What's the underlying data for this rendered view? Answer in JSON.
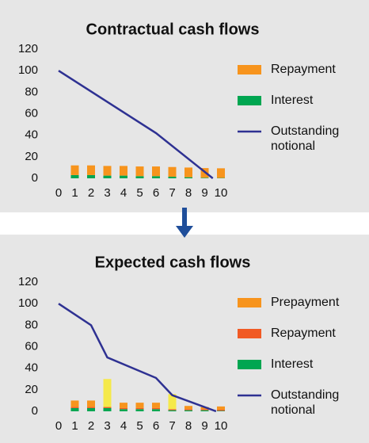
{
  "chart_data": [
    {
      "type": "combo",
      "title": "Contractual cash flows",
      "x": [
        1,
        2,
        3,
        4,
        5,
        6,
        7,
        8,
        9,
        10
      ],
      "xlim": [
        0,
        10
      ],
      "xticks": [
        0,
        1,
        2,
        3,
        4,
        5,
        6,
        7,
        8,
        9,
        10
      ],
      "ylim": [
        0,
        120
      ],
      "yticks": [
        0,
        20,
        40,
        60,
        80,
        100,
        120
      ],
      "series": [
        {
          "name": "Repayment",
          "kind": "bar",
          "color": "#f7941d",
          "values": [
            9,
            9,
            9,
            9,
            9,
            9,
            9,
            9,
            9,
            9
          ]
        },
        {
          "name": "Interest",
          "kind": "bar",
          "color": "#00a651",
          "values": [
            3,
            3,
            2.5,
            2.5,
            2,
            2,
            1.5,
            1,
            0.5,
            0.3
          ]
        },
        {
          "name": "Outstanding notional",
          "kind": "line",
          "color": "#2e3192",
          "x": [
            0,
            6,
            9.5
          ],
          "values": [
            100,
            42,
            0
          ]
        }
      ]
    },
    {
      "type": "combo",
      "title": "Expected cash flows",
      "x": [
        1,
        2,
        3,
        4,
        5,
        6,
        7,
        8,
        9,
        10
      ],
      "xlim": [
        0,
        10
      ],
      "xticks": [
        0,
        1,
        2,
        3,
        4,
        5,
        6,
        7,
        8,
        9,
        10
      ],
      "ylim": [
        0,
        120
      ],
      "yticks": [
        0,
        20,
        40,
        60,
        80,
        100,
        120
      ],
      "series": [
        {
          "name": "Prepayment",
          "kind": "bar",
          "color": "#f7941d",
          "colors": [
            "#f7941d",
            "#f7941d",
            "#f5e94a",
            "#f7941d",
            "#f7941d",
            "#f7941d",
            "#f5e94a",
            "#f7941d",
            "#f7941d",
            "#f7941d"
          ],
          "values": [
            6,
            6,
            26,
            5,
            5,
            5,
            14,
            3,
            2,
            3
          ]
        },
        {
          "name": "Repayment",
          "kind": "bar",
          "color": "#f15a24",
          "values": [
            1,
            1,
            1,
            1,
            1,
            1,
            1,
            1,
            1,
            1
          ]
        },
        {
          "name": "Interest",
          "kind": "bar",
          "color": "#00a651",
          "values": [
            3,
            3,
            3,
            2,
            2,
            2,
            1,
            1,
            1,
            0.5
          ]
        },
        {
          "name": "Outstanding notional",
          "kind": "line",
          "color": "#2e3192",
          "x": [
            0,
            2,
            3,
            6,
            7,
            9.7
          ],
          "values": [
            100,
            80,
            50,
            31,
            15,
            0
          ]
        }
      ]
    }
  ]
}
